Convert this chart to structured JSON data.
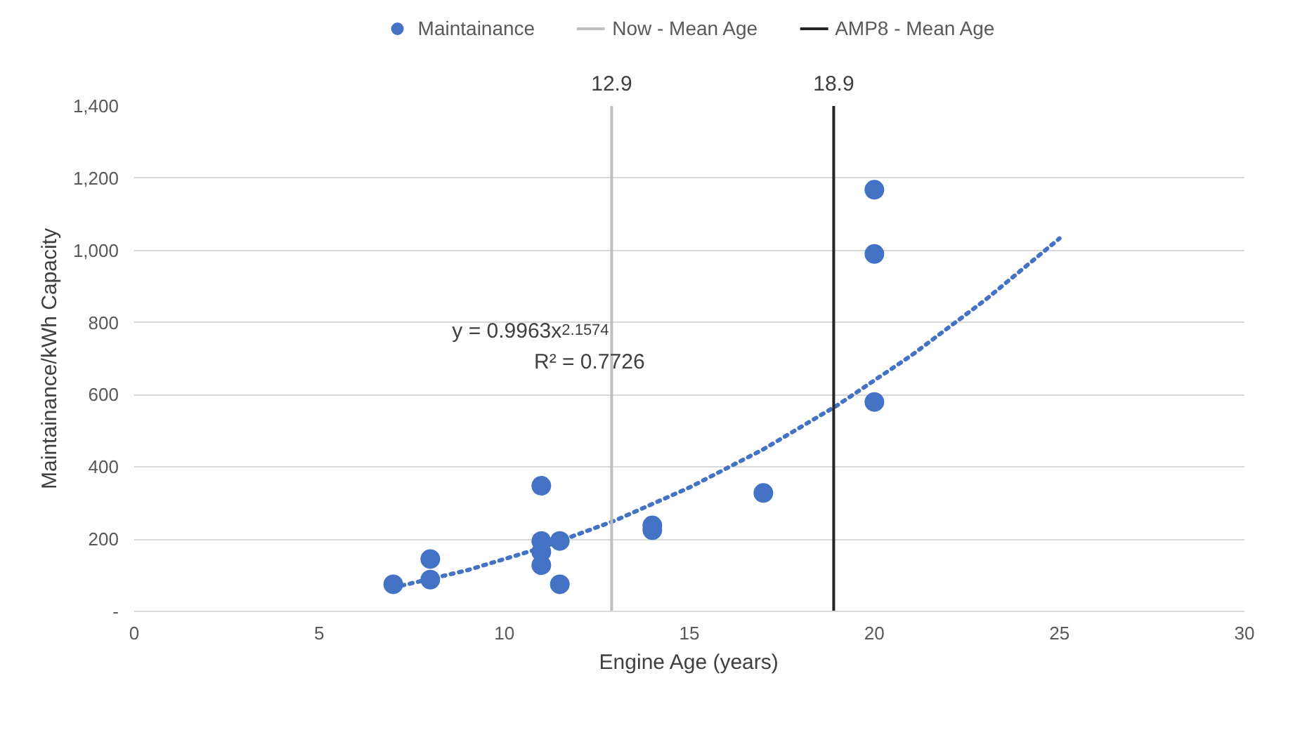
{
  "chart_data": {
    "type": "scatter",
    "xlabel": "Engine Age (years)",
    "ylabel": "Maintainance/kWh Capacity",
    "xlim": [
      0,
      30
    ],
    "xticks": [
      0,
      5,
      10,
      15,
      20,
      25,
      30
    ],
    "ylim": [
      0,
      1400
    ],
    "yticks": [
      {
        "value": 0,
        "label": "-"
      },
      {
        "value": 200,
        "label": "200"
      },
      {
        "value": 400,
        "label": "400"
      },
      {
        "value": 600,
        "label": "600"
      },
      {
        "value": 800,
        "label": "800"
      },
      {
        "value": 1000,
        "label": "1,000"
      },
      {
        "value": 1200,
        "label": "1,200"
      },
      {
        "value": 1400,
        "label": "1,400"
      }
    ],
    "grid": "y",
    "legend": "top",
    "marker": "circle",
    "series": [
      {
        "name": "Maintainance",
        "color": "#4472c4",
        "x": [
          7,
          8,
          8,
          11,
          11,
          11,
          11,
          11.5,
          11.5,
          14,
          14,
          17,
          20,
          20,
          20
        ],
        "values": [
          75,
          145,
          88,
          348,
          195,
          165,
          128,
          195,
          75,
          238,
          225,
          328,
          1168,
          990,
          580
        ]
      },
      {
        "type": "line",
        "color": "#4472c4",
        "line_style": "dotted",
        "marker": "none",
        "x": [
          7,
          9,
          11,
          13,
          15,
          17,
          19,
          21,
          23,
          25
        ],
        "values": [
          66,
          114,
          176,
          252,
          343,
          449,
          571,
          709,
          863,
          1033
        ]
      },
      {
        "name": "Now - Mean Age",
        "type": "line",
        "color": "#bfbfbf",
        "line_style": "solid",
        "marker": "none",
        "x": [
          12.9,
          12.9
        ],
        "values": [
          0,
          1400
        ]
      },
      {
        "name": "AMP8 - Mean Age",
        "type": "line",
        "color": "#262626",
        "line_style": "solid",
        "marker": "none",
        "x": [
          18.9,
          18.9
        ],
        "values": [
          0,
          1400
        ]
      }
    ],
    "annotations": [
      "y = 0.9963x$^{2.1574}$",
      "R² = 0.7726",
      {
        "text": "12.9",
        "x": 12.9,
        "y": 1400
      },
      {
        "text": "18.9",
        "x": 18.9,
        "y": 1400
      }
    ]
  }
}
